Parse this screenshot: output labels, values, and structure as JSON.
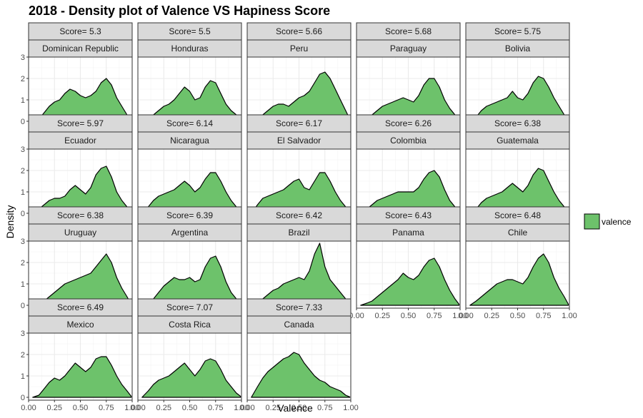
{
  "chart_data": {
    "type": "area",
    "title": "2018 - Density plot of Valence VS Hapiness Score",
    "xlabel": "Valence",
    "ylabel": "Density",
    "xlim": [
      0,
      1
    ],
    "ylim": [
      0,
      3
    ],
    "x_ticks": [
      "0.00",
      "0.25",
      "0.50",
      "0.75",
      "1.00"
    ],
    "y_ticks": [
      "0",
      "1",
      "2",
      "3"
    ],
    "grid": true,
    "fill_color": "#6dc26b",
    "legend": {
      "position": "right",
      "label": "valence"
    },
    "x": [
      0.04,
      0.1,
      0.15,
      0.2,
      0.25,
      0.3,
      0.35,
      0.4,
      0.45,
      0.5,
      0.55,
      0.6,
      0.65,
      0.7,
      0.75,
      0.8,
      0.85,
      0.9,
      0.95,
      0.99
    ],
    "panels": [
      {
        "score": "Score= 5.3",
        "country": "Dominican Republic",
        "y": [
          0.0,
          0.1,
          0.4,
          0.7,
          0.9,
          1.0,
          1.3,
          1.5,
          1.4,
          1.2,
          1.1,
          1.2,
          1.4,
          1.8,
          2.0,
          1.7,
          1.1,
          0.7,
          0.3,
          0.05
        ]
      },
      {
        "score": "Score= 5.5",
        "country": "Honduras",
        "y": [
          0.0,
          0.1,
          0.3,
          0.5,
          0.7,
          0.8,
          1.0,
          1.3,
          1.6,
          1.4,
          1.0,
          1.1,
          1.6,
          1.9,
          1.8,
          1.3,
          0.8,
          0.5,
          0.3,
          0.05
        ]
      },
      {
        "score": "Score= 5.66",
        "country": "Peru",
        "y": [
          0.0,
          0.1,
          0.3,
          0.5,
          0.7,
          0.8,
          0.8,
          0.7,
          0.9,
          1.1,
          1.2,
          1.4,
          1.8,
          2.2,
          2.3,
          2.0,
          1.5,
          1.0,
          0.5,
          0.1
        ]
      },
      {
        "score": "Score= 5.68",
        "country": "Paraguay",
        "y": [
          0.0,
          0.1,
          0.3,
          0.5,
          0.7,
          0.8,
          0.9,
          1.0,
          1.1,
          1.0,
          0.9,
          1.2,
          1.7,
          2.0,
          2.0,
          1.6,
          1.0,
          0.6,
          0.3,
          0.05
        ]
      },
      {
        "score": "Score= 5.75",
        "country": "Bolivia",
        "y": [
          0.0,
          0.2,
          0.5,
          0.7,
          0.8,
          0.9,
          1.0,
          1.1,
          1.4,
          1.1,
          1.0,
          1.3,
          1.8,
          2.1,
          2.0,
          1.6,
          1.1,
          0.7,
          0.3,
          0.05
        ]
      },
      {
        "score": "Score= 5.97",
        "country": "Ecuador",
        "y": [
          0.0,
          0.2,
          0.4,
          0.6,
          0.7,
          0.7,
          0.8,
          1.1,
          1.3,
          1.1,
          0.9,
          1.2,
          1.8,
          2.1,
          2.2,
          1.7,
          1.0,
          0.6,
          0.3,
          0.05
        ]
      },
      {
        "score": "Score= 6.14",
        "country": "Nicaragua",
        "y": [
          0.0,
          0.3,
          0.6,
          0.8,
          0.9,
          1.0,
          1.1,
          1.3,
          1.5,
          1.3,
          1.0,
          1.2,
          1.6,
          1.9,
          1.9,
          1.5,
          1.0,
          0.6,
          0.3,
          0.05
        ]
      },
      {
        "score": "Score= 6.17",
        "country": "El Salvador",
        "y": [
          0.0,
          0.4,
          0.7,
          0.8,
          0.9,
          1.0,
          1.1,
          1.3,
          1.5,
          1.6,
          1.2,
          1.1,
          1.5,
          1.9,
          1.9,
          1.5,
          1.0,
          0.6,
          0.3,
          0.05
        ]
      },
      {
        "score": "Score= 6.26",
        "country": "Colombia",
        "y": [
          0.0,
          0.2,
          0.4,
          0.6,
          0.7,
          0.8,
          0.9,
          1.0,
          1.0,
          1.0,
          1.0,
          1.2,
          1.6,
          1.9,
          2.0,
          1.7,
          1.1,
          0.6,
          0.3,
          0.05
        ]
      },
      {
        "score": "Score= 6.38",
        "country": "Guatemala",
        "y": [
          0.0,
          0.2,
          0.5,
          0.7,
          0.8,
          0.9,
          1.0,
          1.2,
          1.4,
          1.2,
          1.0,
          1.3,
          1.8,
          2.1,
          2.0,
          1.5,
          1.0,
          0.6,
          0.3,
          0.05
        ]
      },
      {
        "score": "Score= 6.38",
        "country": "Uruguay",
        "y": [
          0.0,
          0.1,
          0.2,
          0.4,
          0.6,
          0.8,
          1.0,
          1.1,
          1.2,
          1.3,
          1.4,
          1.5,
          1.8,
          2.1,
          2.4,
          2.0,
          1.3,
          0.8,
          0.4,
          0.05
        ]
      },
      {
        "score": "Score= 6.39",
        "country": "Argentina",
        "y": [
          0.0,
          0.1,
          0.3,
          0.6,
          0.9,
          1.1,
          1.3,
          1.2,
          1.2,
          1.3,
          1.1,
          1.2,
          1.8,
          2.2,
          2.3,
          1.8,
          1.1,
          0.6,
          0.3,
          0.05
        ]
      },
      {
        "score": "Score= 6.42",
        "country": "Brazil",
        "y": [
          0.0,
          0.1,
          0.3,
          0.5,
          0.7,
          0.8,
          1.0,
          1.1,
          1.2,
          1.3,
          1.2,
          1.6,
          2.4,
          2.9,
          1.8,
          1.2,
          0.9,
          0.6,
          0.3,
          0.05
        ]
      },
      {
        "score": "Score= 6.43",
        "country": "Panama",
        "y": [
          0.0,
          0.1,
          0.2,
          0.4,
          0.6,
          0.8,
          1.0,
          1.2,
          1.5,
          1.3,
          1.2,
          1.4,
          1.8,
          2.1,
          2.2,
          1.8,
          1.2,
          0.7,
          0.3,
          0.05
        ]
      },
      {
        "score": "Score= 6.48",
        "country": "Chile",
        "y": [
          0.0,
          0.2,
          0.4,
          0.6,
          0.8,
          1.0,
          1.1,
          1.2,
          1.2,
          1.1,
          1.0,
          1.3,
          1.8,
          2.2,
          2.4,
          2.0,
          1.3,
          0.8,
          0.4,
          0.05
        ]
      },
      {
        "score": "Score= 6.49",
        "country": "Mexico",
        "y": [
          0.0,
          0.1,
          0.4,
          0.7,
          0.9,
          0.8,
          1.0,
          1.3,
          1.6,
          1.4,
          1.2,
          1.4,
          1.8,
          1.9,
          1.9,
          1.5,
          1.0,
          0.6,
          0.3,
          0.05
        ]
      },
      {
        "score": "Score= 7.07",
        "country": "Costa Rica",
        "y": [
          0.0,
          0.3,
          0.6,
          0.8,
          0.9,
          1.0,
          1.2,
          1.4,
          1.6,
          1.3,
          1.0,
          1.3,
          1.7,
          1.8,
          1.7,
          1.3,
          0.8,
          0.5,
          0.2,
          0.05
        ]
      },
      {
        "score": "Score= 7.33",
        "country": "Canada",
        "y": [
          0.0,
          0.5,
          0.9,
          1.2,
          1.4,
          1.6,
          1.8,
          1.9,
          2.1,
          2.0,
          1.6,
          1.3,
          1.0,
          0.8,
          0.7,
          0.5,
          0.4,
          0.3,
          0.1,
          0.02
        ]
      }
    ]
  }
}
